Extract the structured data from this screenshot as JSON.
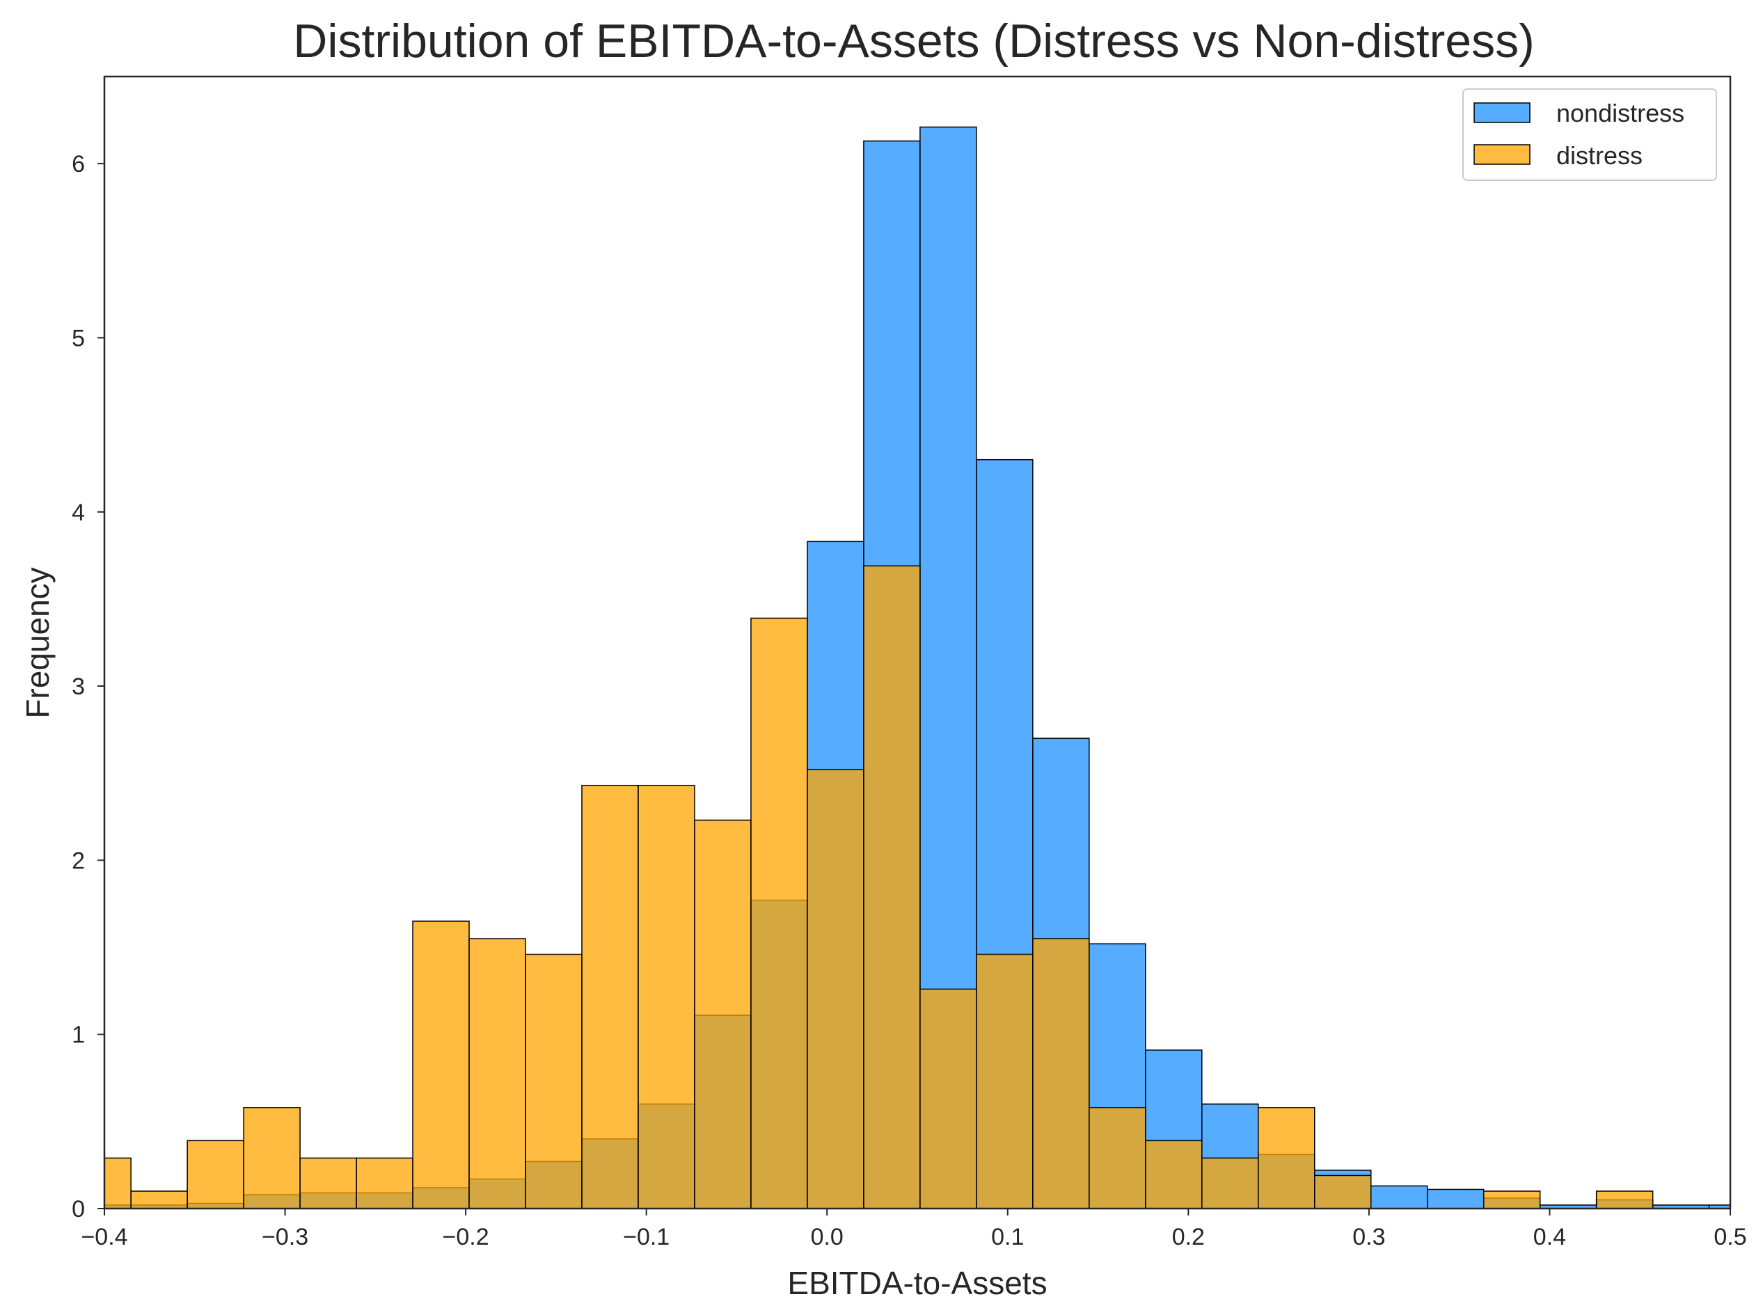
{
  "chart_data": {
    "type": "bar",
    "title": "Distribution of EBITDA-to-Assets (Distress vs Non-distress)",
    "xlabel": "EBITDA-to-Assets",
    "ylabel": "Frequency",
    "xlim": [
      -0.4,
      0.5
    ],
    "ylim": [
      0,
      6.5
    ],
    "grid": false,
    "legend_position": "top-right",
    "x_ticks": [
      -0.4,
      -0.3,
      -0.2,
      -0.1,
      0.0,
      0.1,
      0.2,
      0.3,
      0.4,
      0.5
    ],
    "x_tick_labels": [
      "−0.4",
      "−0.3",
      "−0.2",
      "−0.1",
      "0.0",
      "0.1",
      "0.2",
      "0.3",
      "0.4",
      "0.5"
    ],
    "y_ticks": [
      0,
      1,
      2,
      3,
      4,
      5,
      6
    ],
    "y_tick_labels": [
      "0",
      "1",
      "2",
      "3",
      "4",
      "5",
      "6"
    ],
    "bin_edges": [
      -0.4165,
      -0.3853,
      -0.3541,
      -0.3229,
      -0.2917,
      -0.2605,
      -0.2293,
      -0.1981,
      -0.1669,
      -0.1357,
      -0.1045,
      -0.0733,
      -0.0421,
      -0.0109,
      0.0203,
      0.0515,
      0.0827,
      0.1139,
      0.1451,
      0.1763,
      0.2075,
      0.2387,
      0.2699,
      0.3011,
      0.3323,
      0.3635,
      0.3947,
      0.4259,
      0.4571,
      0.4883,
      0.5195
    ],
    "series": [
      {
        "name": "nondistress",
        "color": "#1e90ff",
        "values": [
          0.02,
          0.02,
          0.03,
          0.08,
          0.09,
          0.09,
          0.12,
          0.17,
          0.27,
          0.4,
          0.6,
          1.11,
          1.77,
          3.83,
          6.13,
          6.21,
          4.3,
          2.7,
          1.52,
          0.91,
          0.6,
          0.31,
          0.22,
          0.13,
          0.11,
          0.06,
          0.02,
          0.05,
          0.02,
          0.02
        ]
      },
      {
        "name": "distress",
        "color": "#ffa500",
        "values": [
          0.29,
          0.1,
          0.39,
          0.58,
          0.29,
          0.29,
          1.65,
          1.55,
          1.46,
          2.43,
          2.43,
          2.23,
          3.39,
          2.52,
          3.69,
          1.26,
          1.46,
          1.55,
          0.58,
          0.39,
          0.29,
          0.58,
          0.19,
          0.0,
          0.0,
          0.1,
          0.0,
          0.1,
          0.0,
          0.0
        ]
      }
    ]
  }
}
